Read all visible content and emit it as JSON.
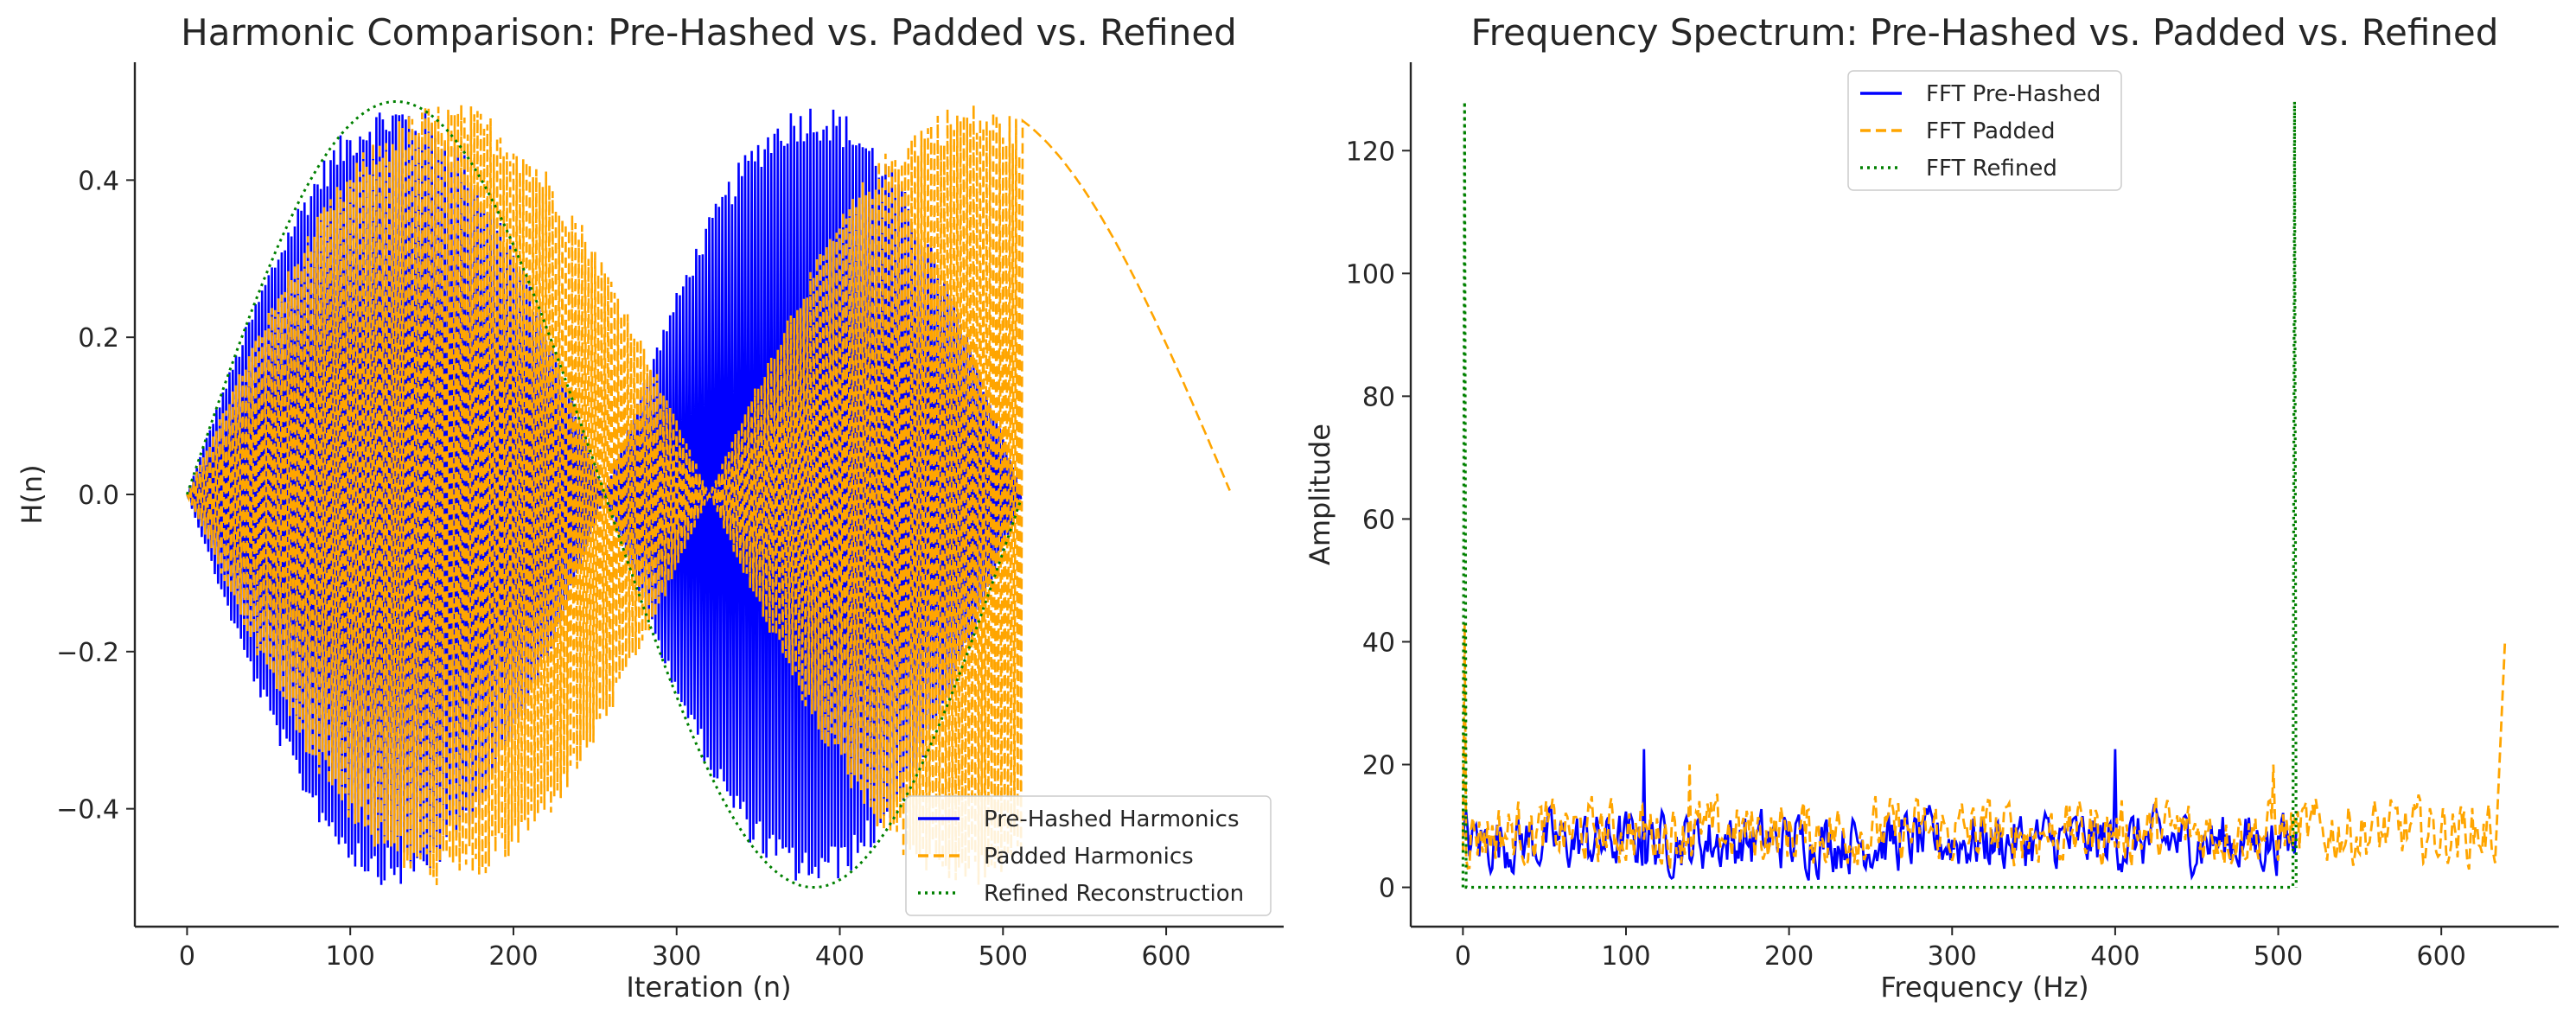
{
  "chart_data": [
    {
      "type": "line",
      "title": "Harmonic Comparison: Pre-Hashed vs. Padded vs. Refined",
      "xlabel": "Iteration (n)",
      "ylabel": "H(n)",
      "xlim": [
        -32,
        672
      ],
      "ylim": [
        -0.55,
        0.55
      ],
      "xticks": [
        0,
        100,
        200,
        300,
        400,
        500,
        600
      ],
      "yticks": [
        -0.4,
        -0.2,
        0.0,
        0.2,
        0.4
      ],
      "xtick_labels": [
        "0",
        "100",
        "200",
        "300",
        "400",
        "500",
        "600"
      ],
      "ytick_labels": [
        "−0.4",
        "−0.2",
        "0.0",
        "0.2",
        "0.4"
      ],
      "grid": false,
      "legend_position": "lower-right",
      "series": [
        {
          "name": "Pre-Hashed Harmonics",
          "color": "#0000ff",
          "style": "solid",
          "n_points": 512,
          "description_of_shape": "rapid alternation filling the envelope ±0.5·|sin(2πn/512)|, envelope peaks at n≈128 and n≈384",
          "envelope_x": [
            0,
            64,
            128,
            192,
            256,
            320,
            384,
            448,
            512
          ],
          "envelope_y": [
            0,
            0.354,
            0.5,
            0.354,
            0,
            0.354,
            0.5,
            0.354,
            0
          ]
        },
        {
          "name": "Padded Harmonics",
          "color": "#ffa500",
          "style": "dashed",
          "n_points": 640,
          "description_of_shape": "rapid alternation within envelope peaking at n≈160 and n≈480, smooth half-wave from n≈512 to 640",
          "envelope_x": [
            0,
            80,
            160,
            240,
            320,
            400,
            480,
            560,
            640
          ],
          "envelope_y": [
            0,
            0.354,
            0.5,
            0.354,
            0,
            0.354,
            0.5,
            0.354,
            0
          ]
        },
        {
          "name": "Refined Reconstruction",
          "color": "#008000",
          "style": "dotted",
          "n_points": 512,
          "x": [
            0,
            64,
            128,
            192,
            256,
            320,
            384,
            448,
            512
          ],
          "y": [
            0,
            0.354,
            0.5,
            0.354,
            0,
            -0.354,
            -0.5,
            -0.354,
            0
          ]
        }
      ]
    },
    {
      "type": "line",
      "title": "Frequency Spectrum: Pre-Hashed vs. Padded vs. Refined",
      "xlabel": "Frequency (Hz)",
      "ylabel": "Amplitude",
      "xlim": [
        -32,
        672
      ],
      "ylim": [
        -6.4,
        134.4
      ],
      "xticks": [
        0,
        100,
        200,
        300,
        400,
        500,
        600
      ],
      "yticks": [
        0,
        20,
        40,
        60,
        80,
        100,
        120
      ],
      "xtick_labels": [
        "0",
        "100",
        "200",
        "300",
        "400",
        "500",
        "600"
      ],
      "ytick_labels": [
        "0",
        "20",
        "40",
        "60",
        "80",
        "100",
        "120"
      ],
      "grid": false,
      "legend_position": "top-center",
      "series": [
        {
          "name": "FFT Pre-Hashed",
          "color": "#0000ff",
          "style": "solid",
          "x_range": [
            0,
            511
          ],
          "typical_amplitude_range": [
            0,
            15
          ],
          "peaks": [
            {
              "x": 111,
              "y": 22.5
            },
            {
              "x": 400,
              "y": 22.5
            },
            {
              "x": 0,
              "y": 8
            }
          ]
        },
        {
          "name": "FFT Padded",
          "color": "#ffa500",
          "style": "dashed",
          "x_range": [
            0,
            639
          ],
          "typical_amplitude_range": [
            0,
            17
          ],
          "peaks": [
            {
              "x": 1,
              "y": 43
            },
            {
              "x": 139,
              "y": 20
            },
            {
              "x": 497,
              "y": 20
            },
            {
              "x": 639,
              "y": 40
            }
          ]
        },
        {
          "name": "FFT Refined",
          "color": "#008000",
          "style": "dotted",
          "x": [
            0,
            1,
            2,
            509,
            510,
            511
          ],
          "y": [
            0,
            128,
            0,
            0,
            128,
            0
          ],
          "baseline": 0
        }
      ]
    }
  ]
}
